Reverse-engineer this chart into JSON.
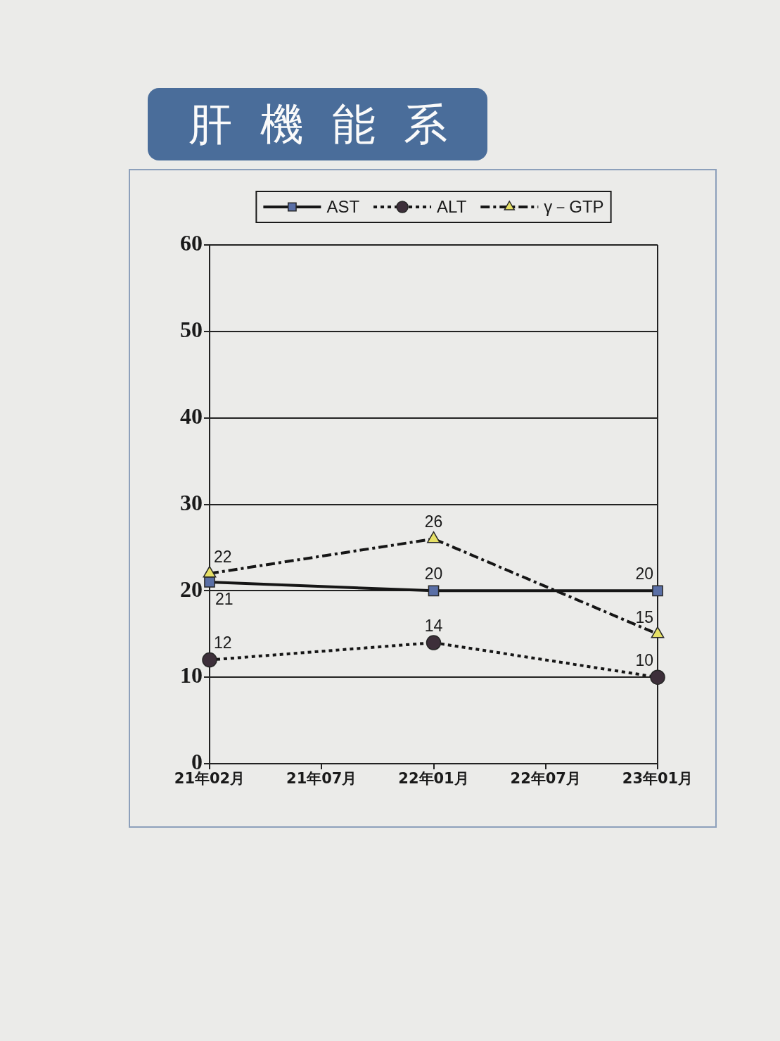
{
  "chart_data": {
    "type": "line",
    "title": "肝機能系",
    "categories": [
      "21年02月",
      "21年07月",
      "22年01月",
      "22年07月",
      "23年01月"
    ],
    "series": [
      {
        "name": "AST",
        "color": "#5a6fa6",
        "values": [
          21,
          null,
          20,
          null,
          20
        ],
        "marker": "square",
        "line_style": "solid"
      },
      {
        "name": "ALT",
        "color": "#3d2f3a",
        "values": [
          12,
          null,
          14,
          null,
          10
        ],
        "marker": "circle",
        "line_style": "dotted"
      },
      {
        "name": "γ－GTP",
        "color": "#e6e066",
        "values": [
          22,
          null,
          26,
          null,
          15
        ],
        "marker": "triangle",
        "line_style": "dashed"
      }
    ],
    "ylim": [
      0,
      60
    ],
    "yticks": [
      0,
      10,
      20,
      30,
      40,
      50,
      60
    ],
    "grid": "y",
    "legend": "top",
    "data_labels": true
  }
}
